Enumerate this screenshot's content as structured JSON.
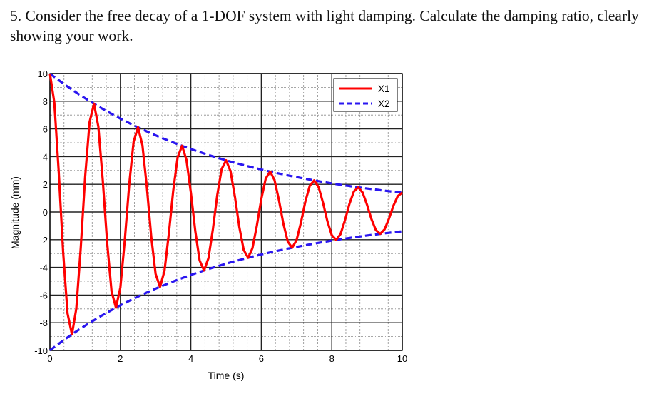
{
  "question": {
    "text": "5. Consider the free decay of a 1-DOF system with light damping. Calculate the damping ratio, clearly showing your work."
  },
  "chart_data": {
    "type": "line",
    "title": "",
    "xlabel": "Time (s)",
    "ylabel": "Magnitude (mm)",
    "xlim": [
      0,
      10
    ],
    "ylim": [
      -10,
      10
    ],
    "xticks": [
      0,
      2,
      4,
      6,
      8,
      10
    ],
    "xtick_labels": [
      "0",
      "2",
      "4",
      "6",
      "8",
      "10"
    ],
    "yticks": [
      10,
      8,
      6,
      4,
      2,
      0,
      -2,
      -4,
      -6,
      -8,
      -10
    ],
    "ytick_labels": [
      "10",
      "8",
      "6",
      "4",
      "2",
      "0",
      "-2",
      "-4",
      "-6",
      "-8",
      "-10"
    ],
    "grid": true,
    "minor_grid": true,
    "legend_position": "upper right",
    "series": [
      {
        "name": "X1",
        "style": "solid",
        "color": "#ff0000",
        "description": "Damped oscillation x(t) = 10·e^(-0.197t)·cos(2π t / 1.25)",
        "peaks": [
          {
            "t": 0.0,
            "x": 9.5
          },
          {
            "t": 1.2,
            "x": 7.8
          },
          {
            "t": 2.45,
            "x": 6.1
          },
          {
            "t": 3.7,
            "x": 4.7
          },
          {
            "t": 4.95,
            "x": 3.7
          },
          {
            "t": 6.2,
            "x": 2.9
          },
          {
            "t": 7.45,
            "x": 2.2
          },
          {
            "t": 8.7,
            "x": 1.7
          },
          {
            "t": 10.0,
            "x": 1.4
          }
        ],
        "troughs": [
          {
            "t": 0.6,
            "x": -8.6
          },
          {
            "t": 1.85,
            "x": -6.9
          },
          {
            "t": 3.1,
            "x": -5.1
          },
          {
            "t": 4.35,
            "x": -4.0
          },
          {
            "t": 5.6,
            "x": -3.1
          },
          {
            "t": 6.85,
            "x": -2.4
          },
          {
            "t": 8.1,
            "x": -1.9
          },
          {
            "t": 9.35,
            "x": -1.4
          }
        ],
        "amplitude0": 10,
        "decay_rate": 0.197,
        "period": 1.25
      },
      {
        "name": "X2",
        "style": "dashed",
        "color": "#2a16f0",
        "description": "Exponential envelope ±10·e^(-0.197t)",
        "x": [
          0,
          1,
          2,
          3,
          4,
          5,
          6,
          7,
          8,
          9,
          10
        ],
        "upper": [
          10.0,
          8.2,
          6.7,
          5.5,
          4.5,
          3.7,
          3.1,
          2.5,
          2.1,
          1.7,
          1.4
        ],
        "lower": [
          -10.0,
          -8.2,
          -6.7,
          -5.5,
          -4.5,
          -3.7,
          -3.1,
          -2.5,
          -2.1,
          -1.7,
          -1.4
        ]
      }
    ],
    "legend": [
      {
        "label": "X1",
        "style": "solid",
        "color": "#ff0000"
      },
      {
        "label": "X2",
        "style": "dashed",
        "color": "#2a16f0"
      }
    ]
  }
}
